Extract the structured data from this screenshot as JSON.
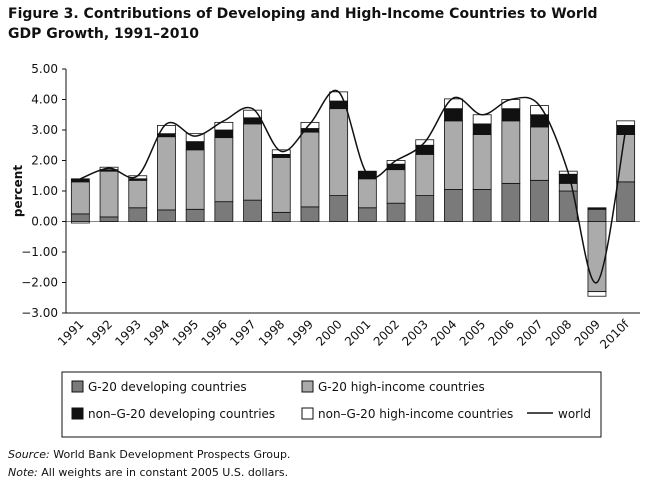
{
  "chart_data": {
    "type": "stacked-bar-line",
    "title": [
      "Figure 3.  Contributions of Developing and High-Income Countries to World",
      "GDP Growth, 1991–2010"
    ],
    "y_label": "percent",
    "categories": [
      "1991",
      "1992",
      "1993",
      "1994",
      "1995",
      "1996",
      "1997",
      "1998",
      "1999",
      "2000",
      "2001",
      "2002",
      "2003",
      "2004",
      "2005",
      "2006",
      "2007",
      "2008",
      "2009",
      "2010f"
    ],
    "series": [
      {
        "name": "G-20 developing countries",
        "color": "#7a7a7a",
        "values": [
          0.25,
          0.15,
          0.45,
          0.38,
          0.4,
          0.65,
          0.7,
          0.3,
          0.48,
          0.85,
          0.45,
          0.6,
          0.85,
          1.05,
          1.05,
          1.25,
          1.35,
          1.0,
          0.4,
          1.3
        ]
      },
      {
        "name": "G-20 high-income countries",
        "color": "#ababab",
        "values": [
          1.05,
          1.5,
          0.9,
          2.4,
          1.95,
          2.1,
          2.5,
          1.8,
          2.45,
          2.85,
          0.95,
          1.1,
          1.35,
          2.25,
          1.8,
          2.05,
          1.75,
          0.25,
          -2.3,
          1.55
        ]
      },
      {
        "name": "non–G-20 developing countries",
        "color": "#111111",
        "values": [
          0.1,
          0.05,
          0.05,
          0.1,
          0.27,
          0.25,
          0.2,
          0.1,
          0.12,
          0.25,
          0.25,
          0.18,
          0.3,
          0.4,
          0.35,
          0.4,
          0.4,
          0.3,
          0.05,
          0.3
        ]
      },
      {
        "name": "non–G-20 high-income countries",
        "color": "#ffffff",
        "values": [
          -0.05,
          0.08,
          0.1,
          0.27,
          0.26,
          0.25,
          0.25,
          0.15,
          0.2,
          0.3,
          0.0,
          0.12,
          0.18,
          0.32,
          0.3,
          0.3,
          0.3,
          0.1,
          -0.15,
          0.15
        ]
      }
    ],
    "line": {
      "name": "world",
      "color": "#111111",
      "values": [
        1.4,
        1.75,
        1.5,
        3.2,
        2.8,
        3.3,
        3.7,
        2.3,
        3.2,
        4.25,
        1.55,
        2.0,
        2.6,
        4.05,
        3.5,
        4.0,
        3.8,
        1.6,
        -2.0,
        3.0
      ]
    },
    "ylim": [
      -3,
      5
    ],
    "yticks": [
      {
        "value": 5,
        "label": "5.00"
      },
      {
        "value": 4,
        "label": "4.00"
      },
      {
        "value": 3,
        "label": "3.00"
      },
      {
        "value": 2,
        "label": "2.00"
      },
      {
        "value": 1,
        "label": "1.00"
      },
      {
        "value": 0,
        "label": "0.00"
      },
      {
        "value": -1,
        "label": "−1.00"
      },
      {
        "value": -2,
        "label": "−2.00"
      },
      {
        "value": -3,
        "label": "−3.00"
      }
    ],
    "source_label": "Source:",
    "source": " World Bank Development Prospects Group.",
    "note_label": "Note:",
    "note": " All weights are in constant 2005 U.S. dollars."
  }
}
